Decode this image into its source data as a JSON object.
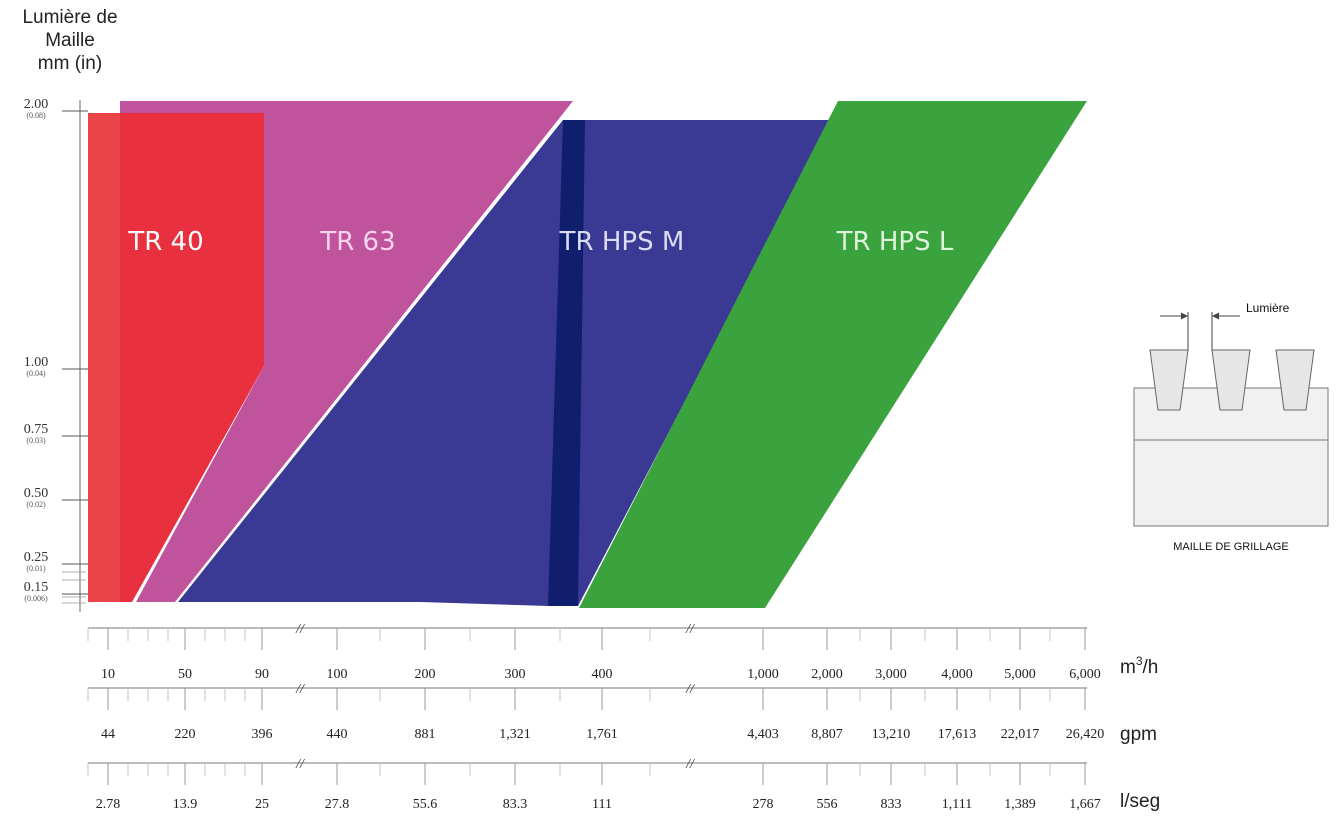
{
  "chart_data": {
    "type": "area",
    "ylabel_lines": [
      "Lumière de",
      "Maille",
      "mm (in)"
    ],
    "y_ticks": [
      {
        "mm": "2.00",
        "in": "(0.08)"
      },
      {
        "mm": "1.00",
        "in": "(0.04)"
      },
      {
        "mm": "0.75",
        "in": "(0.03)"
      },
      {
        "mm": "0.50",
        "in": "(0.02)"
      },
      {
        "mm": "0.25",
        "in": "(0.01)"
      },
      {
        "mm": "0.15",
        "in": "(0.006)"
      }
    ],
    "x_axes": [
      {
        "unit": "m³/h",
        "unit_base": "m",
        "unit_sup": "3",
        "unit_tail": "/h",
        "ticks": [
          "10",
          "50",
          "90",
          "100",
          "200",
          "300",
          "400",
          "1,000",
          "2,000",
          "3,000",
          "4,000",
          "5,000",
          "6,000"
        ]
      },
      {
        "unit": "gpm",
        "ticks": [
          "44",
          "220",
          "396",
          "440",
          "881",
          "1,321",
          "1,761",
          "4,403",
          "8,807",
          "13,210",
          "17,613",
          "22,017",
          "26,420"
        ]
      },
      {
        "unit": "l/seg",
        "ticks": [
          "2.78",
          "13.9",
          "25",
          "27.8",
          "55.6",
          "83.3",
          "111",
          "278",
          "556",
          "833",
          "1,111",
          "1,389",
          "1,667"
        ]
      }
    ],
    "series": [
      {
        "name": "TR 40",
        "color": "#e8303f",
        "label_color": "#ffffff"
      },
      {
        "name": "TR 63",
        "color": "#c0549c",
        "label_color": "#f7d3ee"
      },
      {
        "name": "TR HPS M",
        "color": "#3a3a94",
        "label_color": "#dcdcf4"
      },
      {
        "name": "TR HPS L",
        "color": "#3ba33e",
        "label_color": "#dff2dc"
      }
    ],
    "overlap_color": "#0f1f6e"
  },
  "inset": {
    "title": "Lumière",
    "caption": "MAILLE DE GRILLAGE"
  }
}
